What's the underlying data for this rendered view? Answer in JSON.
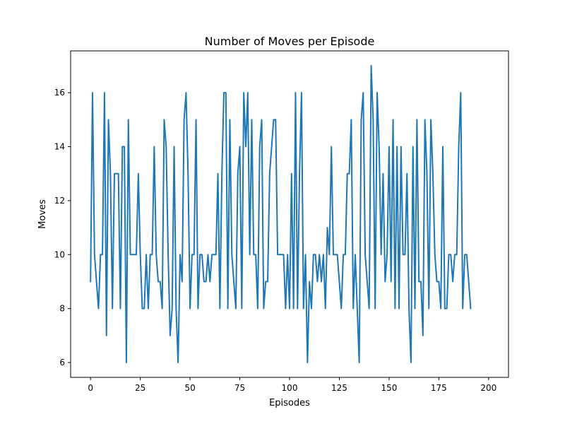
{
  "chart_data": {
    "type": "line",
    "title": "Number of Moves per Episode",
    "xlabel": "Episodes",
    "ylabel": "Moves",
    "xlim": [
      -10,
      210
    ],
    "ylim": [
      5.45,
      17.55
    ],
    "xticks": [
      0,
      25,
      50,
      75,
      100,
      125,
      150,
      175,
      200
    ],
    "yticks": [
      6,
      8,
      10,
      12,
      14,
      16
    ],
    "grid": false,
    "color": "#1f77b4",
    "series": [
      {
        "x_start": 0,
        "values": [
          9,
          16,
          10,
          9,
          8,
          10,
          10,
          16,
          7,
          15,
          13,
          8,
          13,
          13,
          13,
          8,
          14,
          14,
          6,
          15,
          10,
          10,
          10,
          10,
          13,
          10,
          8,
          8,
          10,
          8,
          10,
          10,
          14,
          10,
          9,
          9,
          8,
          15,
          14,
          10,
          7,
          8,
          14,
          8,
          6,
          10,
          9,
          15,
          16,
          13,
          8,
          10,
          10,
          15,
          8,
          10,
          10,
          9,
          9,
          10,
          9,
          10,
          10,
          10,
          13,
          8,
          13,
          16,
          16,
          8,
          15,
          10,
          9,
          8,
          13,
          14,
          8,
          16,
          14,
          16,
          10,
          15,
          10,
          10,
          8,
          14,
          15,
          8,
          9,
          9,
          13,
          14,
          15,
          15,
          10,
          10,
          10,
          10,
          8,
          10,
          8,
          13,
          8,
          16,
          8,
          13,
          16,
          8,
          10,
          6,
          9,
          8,
          10,
          10,
          9,
          10,
          9,
          10,
          8,
          11,
          10,
          14,
          10,
          10,
          10,
          9,
          8,
          10,
          10,
          13,
          13,
          15,
          8,
          10,
          8,
          6,
          15,
          16,
          10,
          9,
          8,
          17,
          15,
          8,
          16,
          14,
          10,
          13,
          9,
          10,
          14,
          9,
          15,
          8,
          14,
          8,
          14,
          10,
          10,
          13,
          8,
          6,
          14,
          8,
          15,
          9,
          9,
          7,
          15,
          13,
          8,
          15,
          13,
          10,
          9,
          9,
          8,
          14,
          8,
          8,
          10,
          10,
          9,
          10,
          10,
          14,
          16,
          8,
          10,
          10,
          9,
          8
        ]
      }
    ]
  }
}
